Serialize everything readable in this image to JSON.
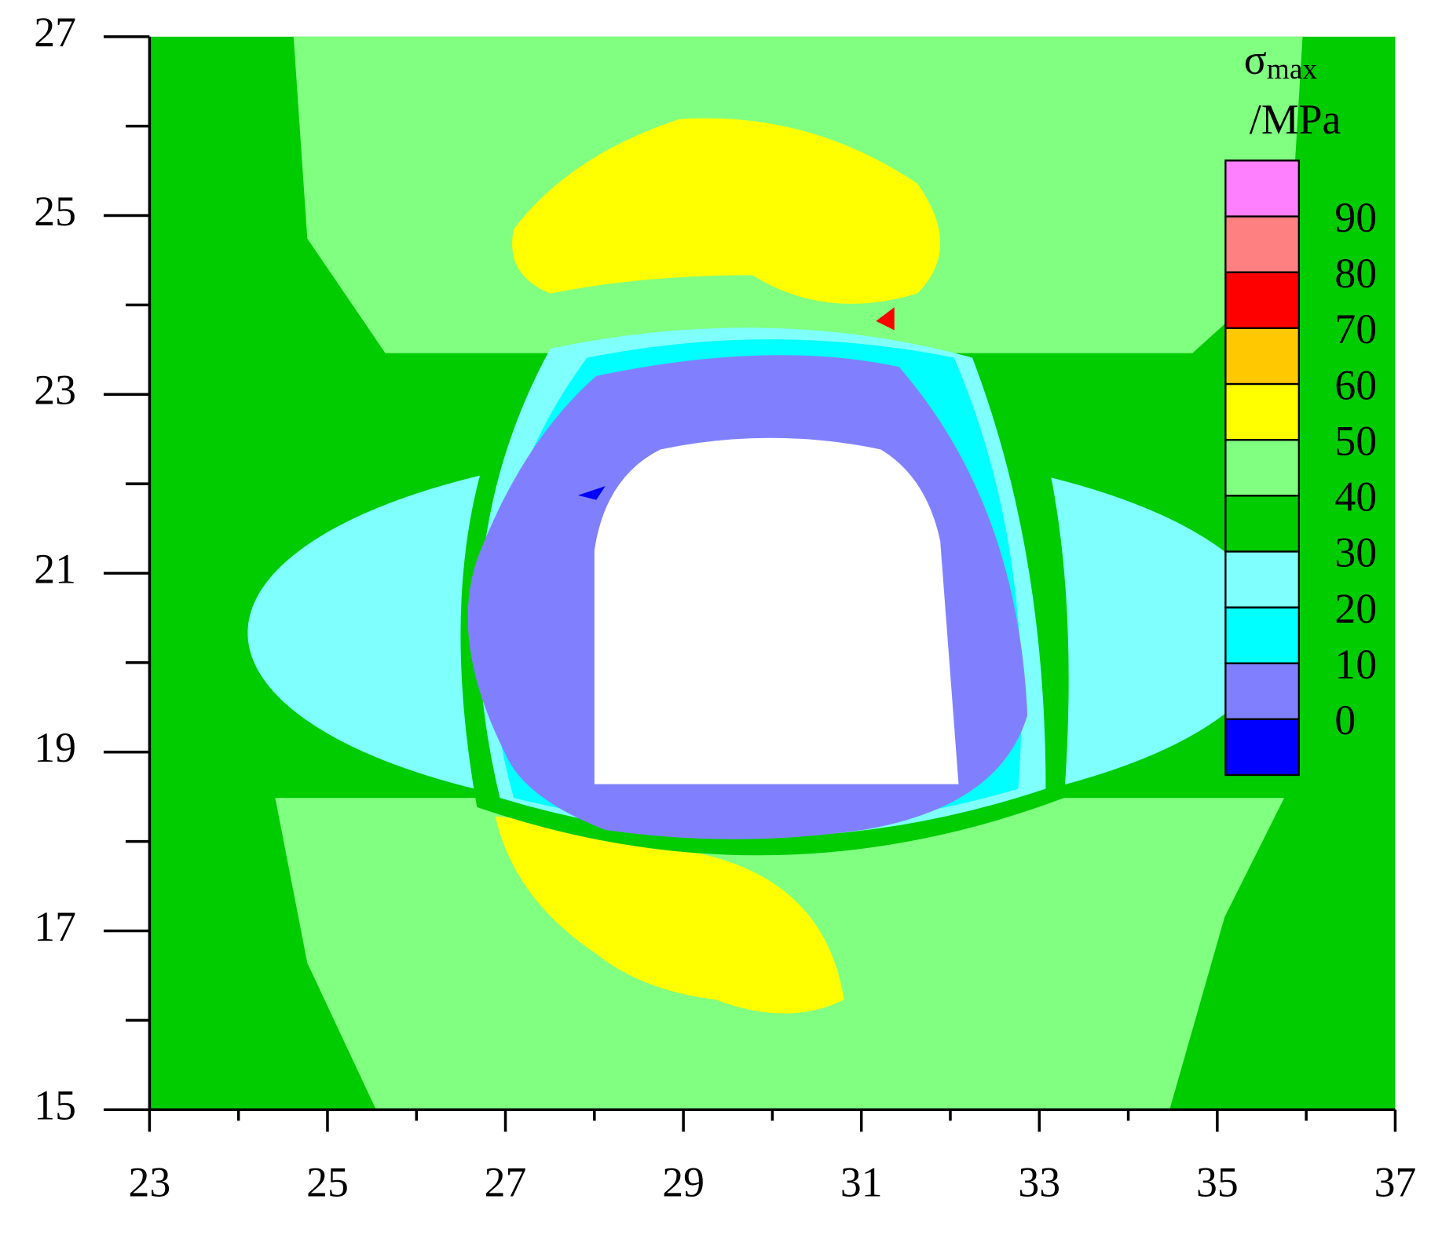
{
  "chart_data": {
    "type": "contour",
    "colorbar_title": {
      "symbol": "σ",
      "subscript": "max",
      "unit": "/MPa"
    },
    "levels": [
      0,
      10,
      20,
      30,
      40,
      50,
      60,
      70,
      80,
      90
    ],
    "colors": [
      "#0000ff",
      "#8080ff",
      "#00ffff",
      "#80ffff",
      "#00cc00",
      "#80ff80",
      "#ffff00",
      "#ffc800",
      "#ff0000",
      "#ff8080",
      "#ff80ff"
    ],
    "xlim": [
      23,
      37
    ],
    "ylim": [
      15,
      27
    ],
    "xticks": [
      23,
      25,
      27,
      29,
      31,
      33,
      35,
      37
    ],
    "yticks": [
      15,
      17,
      19,
      21,
      23,
      25,
      27
    ],
    "xminorticks": [
      24,
      26,
      28,
      30,
      32,
      34,
      36
    ],
    "yminorticks": [
      16,
      18,
      20,
      22,
      24,
      26
    ]
  }
}
